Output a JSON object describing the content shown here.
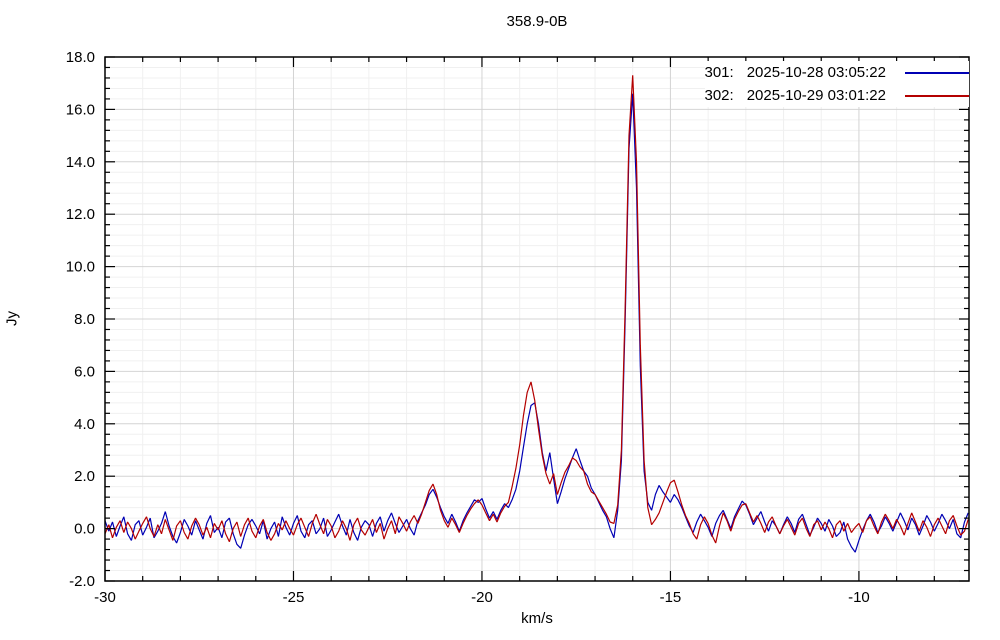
{
  "chart_data": {
    "type": "line",
    "title": "358.9-0B",
    "xlabel": "km/s",
    "ylabel": "Jy",
    "xlim": [
      -30,
      -7.08
    ],
    "ylim": [
      -2,
      18
    ],
    "x_major_ticks": [
      -30,
      -25,
      -20,
      -15,
      -10
    ],
    "x_minor_step": 1,
    "y_major_step": 2,
    "y_minor_step": 0.4,
    "grid": true,
    "legend_position": "top-right",
    "x_start": -30,
    "dx": 0.1,
    "series": [
      {
        "name": "301",
        "legend_id": "301:",
        "datetime": "2025-10-28 03:05:22",
        "color": "#0000b4",
        "values": [
          0.3,
          -0.1,
          0.25,
          -0.3,
          0.1,
          0.45,
          -0.2,
          -0.45,
          0.15,
          0.3,
          -0.25,
          0.05,
          0.4,
          -0.35,
          -0.1,
          0.2,
          0.65,
          0.1,
          -0.3,
          -0.55,
          -0.15,
          0.35,
          0.1,
          -0.25,
          0.3,
          -0.05,
          -0.4,
          0.2,
          0.5,
          -0.15,
          0.05,
          -0.35,
          0.25,
          0.4,
          -0.2,
          -0.6,
          -0.75,
          -0.25,
          0.15,
          0.35,
          0.1,
          -0.2,
          0.3,
          -0.4,
          0.0,
          0.25,
          -0.3,
          0.45,
          0.05,
          -0.25,
          0.2,
          0.5,
          -0.1,
          -0.35,
          0.15,
          0.3,
          -0.2,
          0.0,
          0.4,
          -0.3,
          -0.05,
          0.25,
          0.55,
          0.1,
          -0.25,
          0.35,
          -0.15,
          -0.45,
          0.05,
          0.3,
          0.15,
          -0.3,
          0.2,
          0.45,
          -0.1,
          0.3,
          0.6,
          0.2,
          -0.15,
          0.1,
          0.35,
          0.0,
          -0.25,
          0.3,
          0.6,
          0.9,
          1.3,
          1.5,
          1.2,
          0.8,
          0.45,
          0.2,
          0.55,
          0.25,
          -0.1,
          0.3,
          0.6,
          0.85,
          1.1,
          1.0,
          1.15,
          0.75,
          0.4,
          0.65,
          0.35,
          0.7,
          0.95,
          0.8,
          1.1,
          1.5,
          2.2,
          3.1,
          4.0,
          4.7,
          4.8,
          4.0,
          2.9,
          2.2,
          2.9,
          1.9,
          0.95,
          1.4,
          1.9,
          2.3,
          2.7,
          3.05,
          2.6,
          2.2,
          2.0,
          1.55,
          1.3,
          1.0,
          0.7,
          0.45,
          0.0,
          -0.35,
          0.7,
          2.6,
          8.0,
          14.5,
          16.6,
          13.0,
          6.2,
          2.2,
          1.0,
          0.7,
          1.3,
          1.65,
          1.4,
          1.2,
          1.0,
          1.3,
          1.1,
          0.8,
          0.45,
          0.1,
          -0.15,
          0.25,
          0.55,
          0.3,
          0.05,
          -0.3,
          0.2,
          0.5,
          0.7,
          0.35,
          0.0,
          0.45,
          0.75,
          1.05,
          0.9,
          0.55,
          0.15,
          0.4,
          0.65,
          0.25,
          -0.1,
          0.3,
          0.1,
          -0.2,
          0.15,
          0.45,
          0.2,
          -0.15,
          0.35,
          0.55,
          0.15,
          -0.25,
          0.05,
          0.4,
          0.2,
          -0.1,
          0.35,
          0.1,
          -0.3,
          -0.15,
          0.25,
          -0.4,
          -0.7,
          -0.9,
          -0.45,
          -0.05,
          0.3,
          0.55,
          0.25,
          -0.15,
          0.1,
          0.45,
          0.2,
          -0.1,
          0.25,
          0.6,
          0.3,
          -0.05,
          0.4,
          0.15,
          -0.25,
          0.1,
          0.5,
          0.25,
          -0.1,
          0.2,
          0.55,
          0.3,
          0.0,
          0.35,
          -0.2,
          -0.35,
          0.25,
          0.6
        ]
      },
      {
        "name": "302",
        "legend_id": "302:",
        "datetime": "2025-10-29 03:01:22",
        "color": "#b40000",
        "values": [
          -0.2,
          0.15,
          -0.35,
          0.05,
          0.3,
          -0.15,
          0.25,
          0.0,
          -0.4,
          -0.1,
          0.2,
          0.45,
          0.0,
          -0.3,
          0.15,
          -0.2,
          0.35,
          -0.05,
          -0.45,
          0.1,
          0.3,
          -0.15,
          -0.4,
          0.1,
          0.4,
          0.15,
          -0.25,
          0.05,
          -0.35,
          0.2,
          -0.05,
          0.3,
          -0.2,
          -0.5,
          0.0,
          0.25,
          -0.3,
          0.15,
          0.4,
          -0.1,
          -0.35,
          0.1,
          0.35,
          -0.15,
          -0.45,
          -0.2,
          0.2,
          -0.05,
          0.3,
          0.0,
          -0.25,
          0.15,
          0.4,
          0.05,
          -0.3,
          0.2,
          0.55,
          0.15,
          -0.2,
          0.35,
          0.1,
          -0.35,
          -0.1,
          0.3,
          0.0,
          -0.45,
          0.15,
          0.4,
          -0.05,
          -0.25,
          0.05,
          0.35,
          -0.15,
          0.2,
          -0.4,
          0.0,
          0.3,
          -0.2,
          0.45,
          0.2,
          -0.1,
          0.25,
          0.5,
          0.2,
          0.55,
          1.0,
          1.45,
          1.7,
          1.3,
          0.7,
          0.3,
          0.05,
          0.4,
          0.15,
          -0.15,
          0.2,
          0.5,
          0.75,
          0.95,
          1.1,
          0.9,
          0.6,
          0.3,
          0.55,
          0.25,
          0.6,
          0.85,
          1.0,
          1.6,
          2.3,
          3.2,
          4.3,
          5.2,
          5.6,
          4.9,
          3.8,
          2.8,
          2.1,
          1.7,
          2.1,
          1.3,
          1.75,
          2.15,
          2.4,
          2.7,
          2.6,
          2.35,
          2.2,
          1.7,
          1.4,
          1.3,
          1.05,
          0.8,
          0.55,
          0.25,
          0.2,
          0.9,
          3.0,
          8.5,
          15.0,
          17.3,
          14.0,
          7.0,
          2.6,
          0.8,
          0.15,
          0.35,
          0.6,
          1.0,
          1.4,
          1.75,
          1.85,
          1.4,
          0.9,
          0.5,
          0.2,
          -0.2,
          -0.4,
          0.15,
          0.45,
          0.2,
          -0.25,
          -0.55,
          0.1,
          0.6,
          0.3,
          -0.1,
          0.35,
          0.65,
          0.9,
          0.95,
          0.6,
          0.25,
          0.5,
          0.2,
          -0.15,
          0.25,
          0.45,
          0.1,
          -0.2,
          0.1,
          0.35,
          0.05,
          -0.25,
          0.2,
          0.4,
          0.0,
          -0.3,
          0.15,
          0.3,
          -0.05,
          0.25,
          0.0,
          -0.35,
          0.15,
          0.3,
          -0.1,
          0.2,
          -0.15,
          0.05,
          0.2,
          -0.15,
          0.3,
          0.45,
          0.1,
          -0.2,
          0.25,
          0.55,
          0.3,
          0.0,
          0.35,
          0.1,
          -0.25,
          0.2,
          0.6,
          0.25,
          -0.1,
          0.3,
          0.05,
          -0.3,
          0.15,
          0.4,
          0.1,
          -0.2,
          0.3,
          0.5,
          0.1,
          -0.25,
          -0.1,
          0.35
        ]
      }
    ],
    "style": {
      "minor_grid_color": "#f0f0f0",
      "major_grid_color": "#d4d4d4",
      "axis_color": "#000000"
    }
  }
}
